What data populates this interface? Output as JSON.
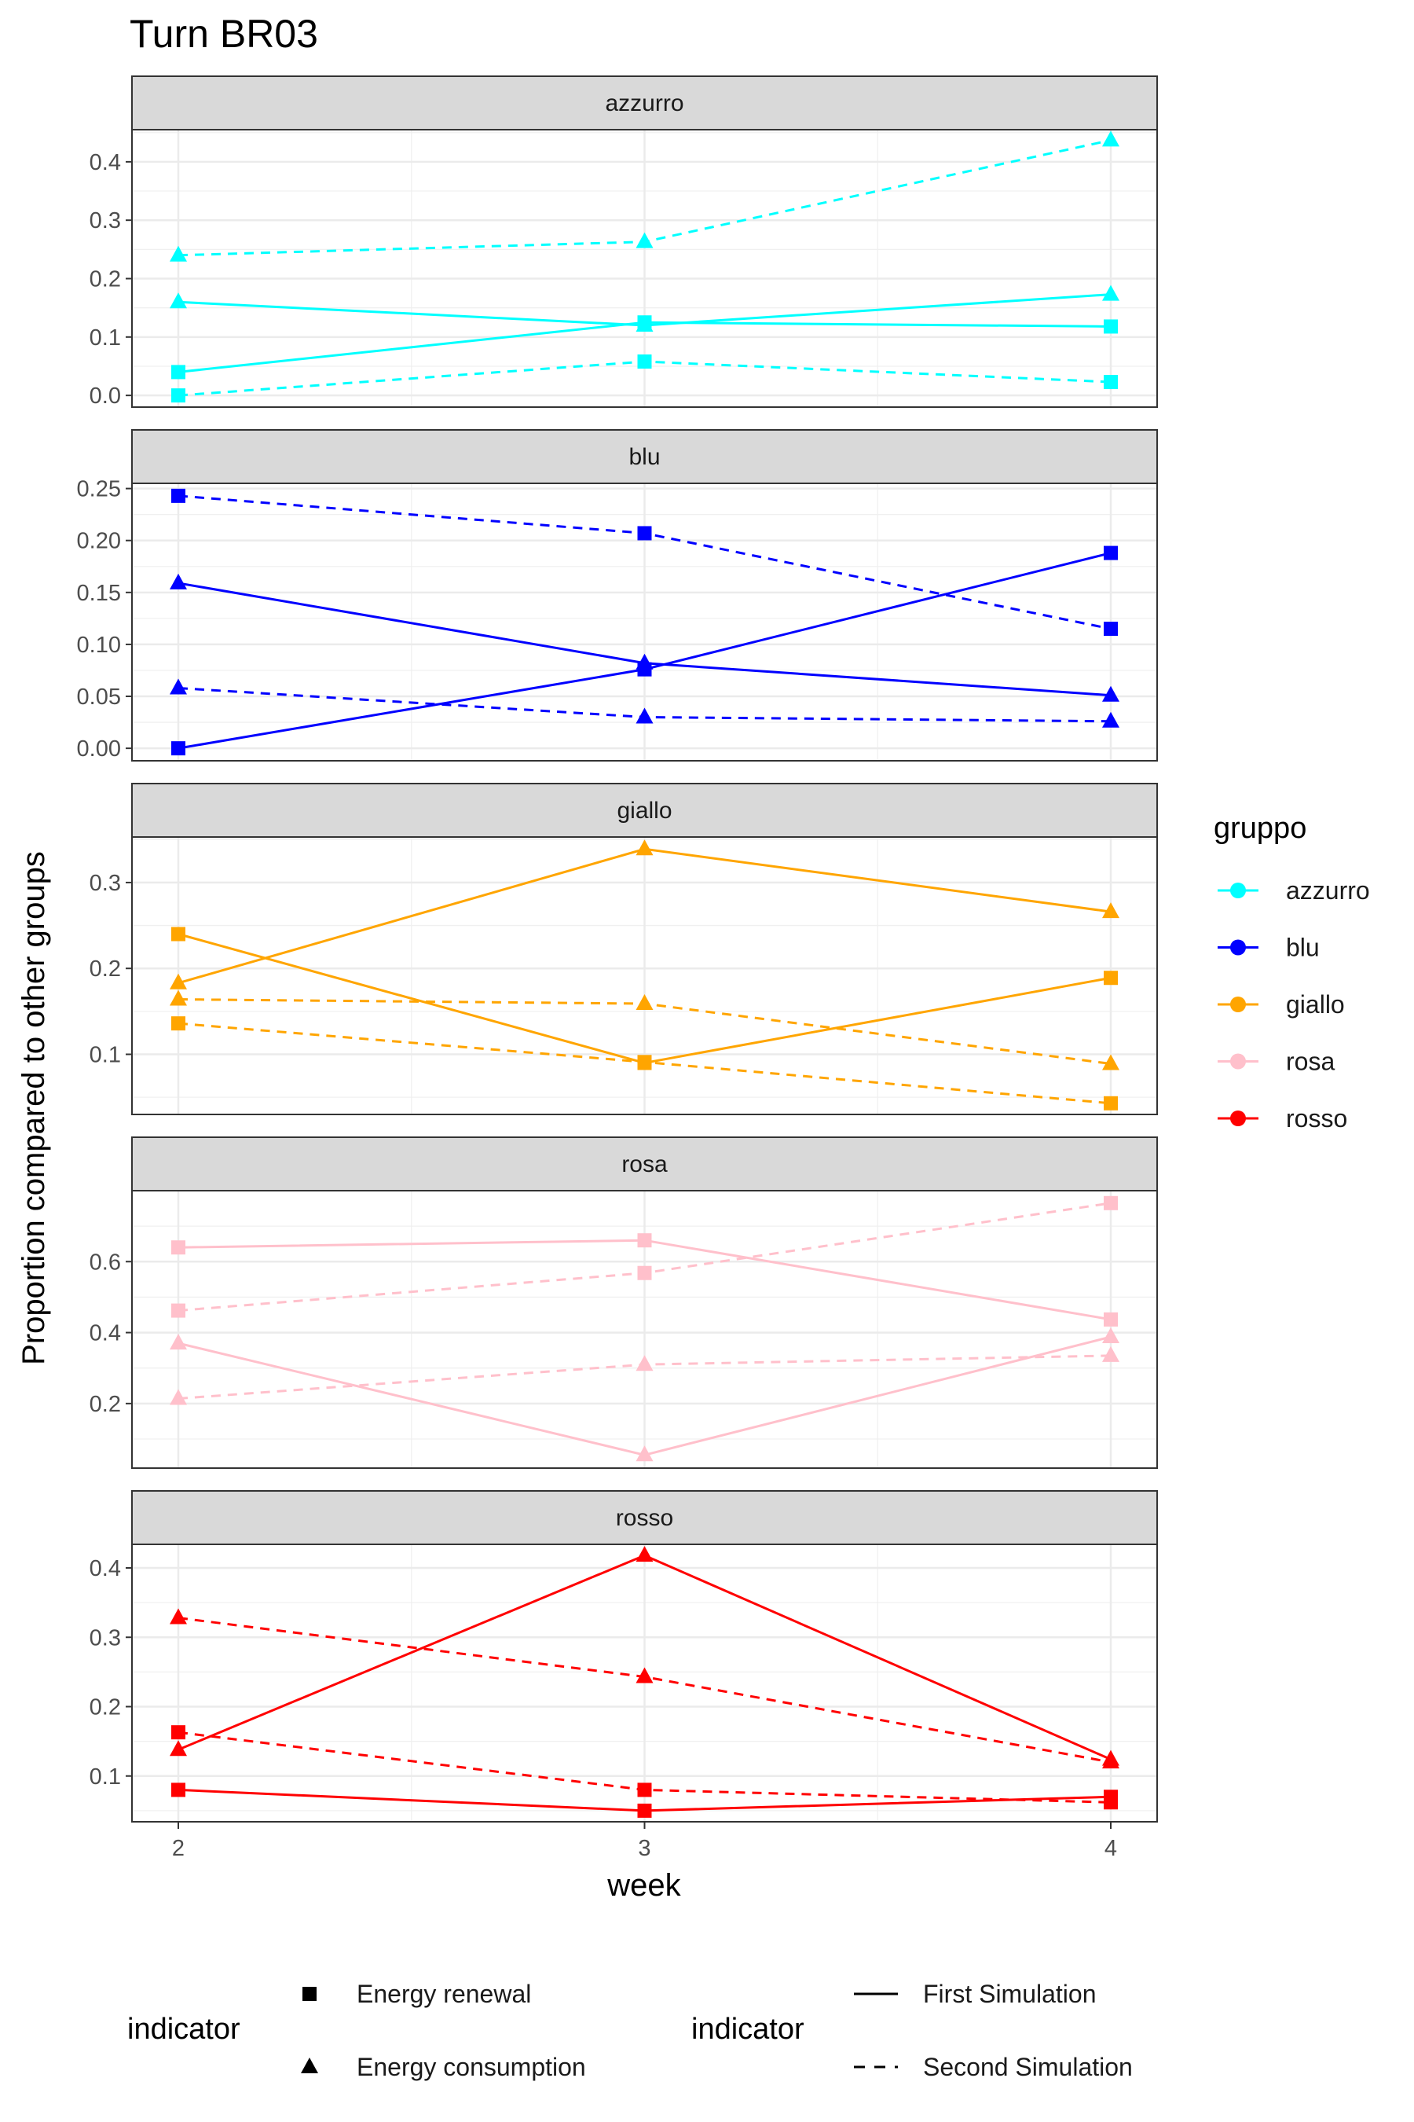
{
  "chart_data": {
    "type": "line",
    "title": "Turn BR03",
    "xlabel": "week",
    "ylabel": "Proportion compared to other groups",
    "x": [
      2,
      3,
      4
    ],
    "x_ticks": [
      "2",
      "3",
      "4"
    ],
    "facet_by": "gruppo",
    "grid": true,
    "legend_position": "right and bottom",
    "color_legend": {
      "title": "gruppo",
      "entries": [
        "azzurro",
        "blu",
        "giallo",
        "rosa",
        "rosso"
      ]
    },
    "shape_legend": {
      "title": "indicator",
      "entries": [
        "Energy renewal",
        "Energy consumption"
      ]
    },
    "linetype_legend": {
      "title": "indicator",
      "entries": [
        "First Simulation",
        "Second Simulation"
      ]
    },
    "colors": {
      "azzurro": "#00FFFF",
      "blu": "#0000FF",
      "giallo": "#FFA500",
      "rosa": "#FFC0CB",
      "rosso": "#FF0000"
    },
    "panels": [
      {
        "name": "azzurro",
        "ylim": [
          -0.02,
          0.455
        ],
        "yticks": [
          "0.0",
          "0.1",
          "0.2",
          "0.3",
          "0.4"
        ],
        "ytick_values": [
          0,
          0.1,
          0.2,
          0.3,
          0.4
        ],
        "series": [
          {
            "shape": "Energy renewal",
            "linetype": "First Simulation",
            "values": [
              0.04,
              0.125,
              0.118
            ]
          },
          {
            "shape": "Energy renewal",
            "linetype": "Second Simulation",
            "values": [
              0.0,
              0.058,
              0.023
            ]
          },
          {
            "shape": "Energy consumption",
            "linetype": "First Simulation",
            "values": [
              0.16,
              0.12,
              0.173
            ]
          },
          {
            "shape": "Energy consumption",
            "linetype": "Second Simulation",
            "values": [
              0.24,
              0.263,
              0.437
            ]
          }
        ]
      },
      {
        "name": "blu",
        "ylim": [
          -0.012,
          0.255
        ],
        "yticks": [
          "0.00",
          "0.05",
          "0.10",
          "0.15",
          "0.20",
          "0.25"
        ],
        "ytick_values": [
          0,
          0.05,
          0.1,
          0.15,
          0.2,
          0.25
        ],
        "series": [
          {
            "shape": "Energy renewal",
            "linetype": "First Simulation",
            "values": [
              0.0,
              0.076,
              0.188
            ]
          },
          {
            "shape": "Energy renewal",
            "linetype": "Second Simulation",
            "values": [
              0.243,
              0.207,
              0.115
            ]
          },
          {
            "shape": "Energy consumption",
            "linetype": "First Simulation",
            "values": [
              0.159,
              0.082,
              0.051
            ]
          },
          {
            "shape": "Energy consumption",
            "linetype": "Second Simulation",
            "values": [
              0.058,
              0.03,
              0.026
            ]
          }
        ]
      },
      {
        "name": "giallo",
        "ylim": [
          0.03,
          0.353
        ],
        "yticks": [
          "0.1",
          "0.2",
          "0.3"
        ],
        "ytick_values": [
          0.1,
          0.2,
          0.3
        ],
        "series": [
          {
            "shape": "Energy renewal",
            "linetype": "First Simulation",
            "values": [
              0.24,
              0.09,
              0.189
            ]
          },
          {
            "shape": "Energy renewal",
            "linetype": "Second Simulation",
            "values": [
              0.136,
              0.091,
              0.043
            ]
          },
          {
            "shape": "Energy consumption",
            "linetype": "First Simulation",
            "values": [
              0.183,
              0.339,
              0.266
            ]
          },
          {
            "shape": "Energy consumption",
            "linetype": "Second Simulation",
            "values": [
              0.164,
              0.159,
              0.089
            ]
          }
        ]
      },
      {
        "name": "rosa",
        "ylim": [
          0.018,
          0.8
        ],
        "yticks": [
          "0.2",
          "0.4",
          "0.6"
        ],
        "ytick_values": [
          0.2,
          0.4,
          0.6
        ],
        "series": [
          {
            "shape": "Energy renewal",
            "linetype": "First Simulation",
            "values": [
              0.64,
              0.66,
              0.437
            ]
          },
          {
            "shape": "Energy renewal",
            "linetype": "Second Simulation",
            "values": [
              0.462,
              0.568,
              0.765
            ]
          },
          {
            "shape": "Energy consumption",
            "linetype": "First Simulation",
            "values": [
              0.37,
              0.055,
              0.388
            ]
          },
          {
            "shape": "Energy consumption",
            "linetype": "Second Simulation",
            "values": [
              0.214,
              0.31,
              0.335
            ]
          }
        ]
      },
      {
        "name": "rosso",
        "ylim": [
          0.034,
          0.434
        ],
        "yticks": [
          "0.1",
          "0.2",
          "0.3",
          "0.4"
        ],
        "ytick_values": [
          0.1,
          0.2,
          0.3,
          0.4
        ],
        "series": [
          {
            "shape": "Energy renewal",
            "linetype": "First Simulation",
            "values": [
              0.08,
              0.05,
              0.07
            ]
          },
          {
            "shape": "Energy renewal",
            "linetype": "Second Simulation",
            "values": [
              0.163,
              0.08,
              0.062
            ]
          },
          {
            "shape": "Energy consumption",
            "linetype": "First Simulation",
            "values": [
              0.138,
              0.418,
              0.124
            ]
          },
          {
            "shape": "Energy consumption",
            "linetype": "Second Simulation",
            "values": [
              0.328,
              0.243,
              0.12
            ]
          }
        ]
      }
    ]
  }
}
